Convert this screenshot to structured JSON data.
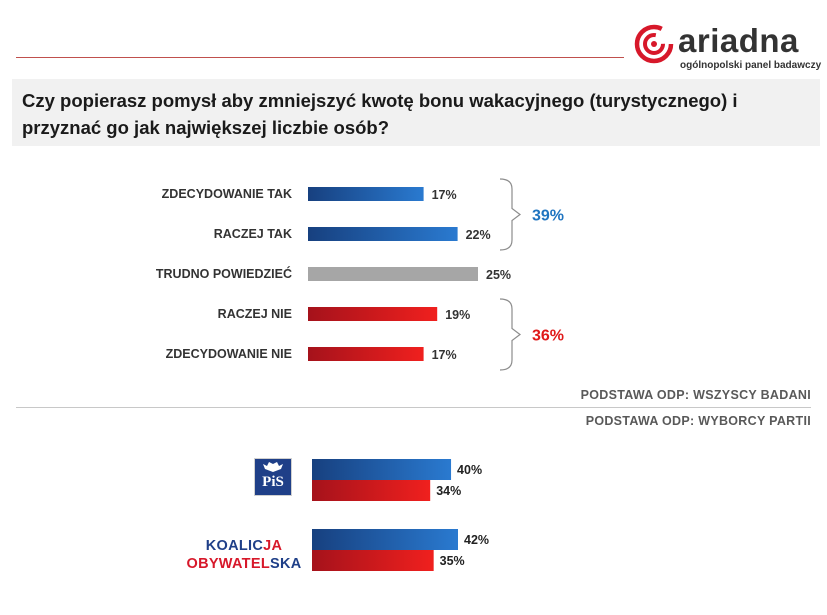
{
  "header": {
    "logo_word": "ariadna",
    "logo_tagline": "ogólnopolski panel badawczy"
  },
  "question": "Czy popierasz pomysł aby zmniejszyć kwotę bonu wakacyjnego (turystycznego) i przyznać go jak największej liczbie osób?",
  "bases": {
    "all": "PODSTAWA ODP:  WSZYSCY BADANI",
    "party": "PODSTAWA ODP:  WYBORCY PARTII"
  },
  "parties": {
    "pis": {
      "logo_text": "PiS"
    },
    "ko": {
      "logo_line1_a": "KOALIC",
      "logo_line1_b": "JA",
      "logo_line2_a": "OBYWATEL",
      "logo_line2_b": "SKA"
    }
  },
  "colors": {
    "blue": "#1f63b5",
    "gray": "#a6a6a6",
    "red": "#e0191e",
    "support_total": "#1f74c0",
    "oppose_total": "#e01a1a"
  },
  "chart_data": [
    {
      "type": "bar",
      "orientation": "horizontal",
      "categories": [
        "ZDECYDOWANIE TAK",
        "RACZEJ TAK",
        "TRUDNO POWIEDZIEĆ",
        "RACZEJ NIE",
        "ZDECYDOWANIE NIE"
      ],
      "values": [
        17,
        22,
        25,
        19,
        17
      ],
      "value_labels": [
        "17%",
        "22%",
        "25%",
        "19%",
        "17%"
      ],
      "bar_colors": [
        "blue",
        "blue",
        "gray",
        "red",
        "red"
      ],
      "groups": [
        {
          "label": "39%",
          "members": [
            0,
            1
          ],
          "color": "support_total"
        },
        {
          "label": "36%",
          "members": [
            3,
            4
          ],
          "color": "oppose_total"
        }
      ],
      "xlim": [
        0,
        25
      ]
    },
    {
      "type": "bar",
      "orientation": "horizontal",
      "categories": [
        "PiS",
        "KOALICJA OBYWATELSKA"
      ],
      "series": [
        {
          "values": [
            40,
            42
          ],
          "labels": [
            "40%",
            "42%"
          ],
          "color": "blue"
        },
        {
          "values": [
            34,
            35
          ],
          "labels": [
            "34%",
            "35%"
          ],
          "color": "red"
        }
      ],
      "xlim": [
        0,
        42
      ]
    }
  ]
}
